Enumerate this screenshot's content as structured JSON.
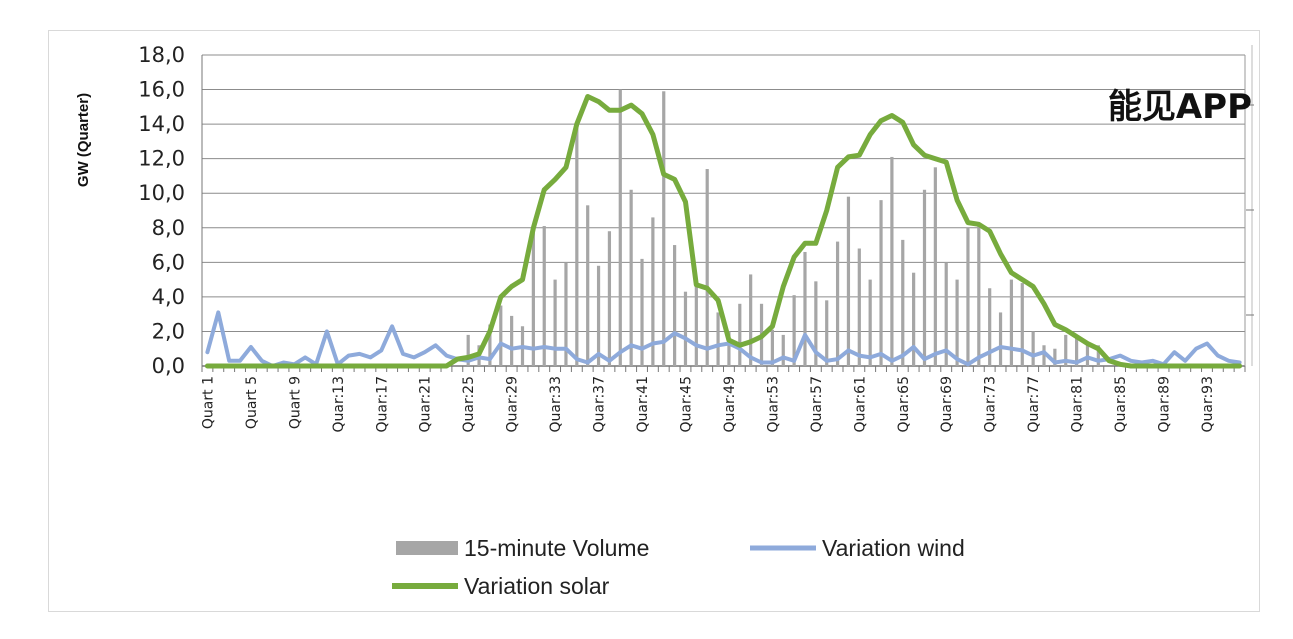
{
  "chart_data": {
    "type": "bar+line",
    "ylabel": "GW (Quarter)",
    "ylim": [
      0,
      18
    ],
    "yticks": [
      "0,0",
      "2,0",
      "4,0",
      "6,0",
      "8,0",
      "10,0",
      "12,0",
      "14,0",
      "16,0",
      "18,0"
    ],
    "grid": "horizontal",
    "legend_position": "bottom",
    "x_tick_labels": [
      "Quart 1",
      "Quart 5",
      "Quart 9",
      "Quar:13",
      "Quar:17",
      "Quar:21",
      "Quar:25",
      "Quar:29",
      "Quar:33",
      "Quar:37",
      "Quar:41",
      "Quar:45",
      "Quar:49",
      "Quar:53",
      "Quar:57",
      "Quar:61",
      "Quar:65",
      "Quar:69",
      "Quar:73",
      "Quar:77",
      "Quar:81",
      "Quar:85",
      "Quar:89",
      "Quar:93"
    ],
    "series": [
      {
        "name": "15-minute Volume",
        "kind": "bar",
        "color": "#a6a6a6",
        "values": [
          0,
          0,
          0,
          0,
          0,
          0,
          0,
          0,
          0,
          0,
          0,
          0,
          0,
          0,
          0,
          0,
          0,
          0,
          0,
          0,
          0,
          0,
          0,
          0,
          1.8,
          1.2,
          2.4,
          3.5,
          2.9,
          2.3,
          7.8,
          8.1,
          5.0,
          6.0,
          14.1,
          9.3,
          5.8,
          7.8,
          16.0,
          10.2,
          6.2,
          8.6,
          15.9,
          7.0,
          4.3,
          5.0,
          11.4,
          3.1,
          2.0,
          3.6,
          5.3,
          3.6,
          2.1,
          1.8,
          4.1,
          6.6,
          4.9,
          3.8,
          7.2,
          9.8,
          6.8,
          5.0,
          9.6,
          12.1,
          7.3,
          5.4,
          10.2,
          11.5,
          6.0,
          5.0,
          8.0,
          8.1,
          4.5,
          3.1,
          5.0,
          4.8,
          2.0,
          1.2,
          1.0,
          1.8,
          1.6,
          1.4,
          1.2,
          0,
          0,
          0,
          0,
          0,
          0,
          0,
          0,
          0,
          0,
          0,
          0,
          0
        ]
      },
      {
        "name": "Variation wind",
        "kind": "line",
        "color": "#8eaadb",
        "values": [
          0.8,
          3.1,
          0.3,
          0.3,
          1.1,
          0.3,
          0,
          0.2,
          0.1,
          0.5,
          0.1,
          2.0,
          0.1,
          0.6,
          0.7,
          0.5,
          0.9,
          2.3,
          0.7,
          0.5,
          0.8,
          1.2,
          0.6,
          0.4,
          0.3,
          0.5,
          0.4,
          1.3,
          1.0,
          1.1,
          1.0,
          1.1,
          1.0,
          1.0,
          0.4,
          0.2,
          0.7,
          0.3,
          0.8,
          1.2,
          1.0,
          1.3,
          1.4,
          1.9,
          1.6,
          1.2,
          1.0,
          1.2,
          1.3,
          1.0,
          0.5,
          0.2,
          0.2,
          0.5,
          0.3,
          1.8,
          0.8,
          0.3,
          0.4,
          0.9,
          0.6,
          0.5,
          0.7,
          0.3,
          0.6,
          1.1,
          0.4,
          0.7,
          0.9,
          0.4,
          0.1,
          0.5,
          0.8,
          1.1,
          1.0,
          0.9,
          0.6,
          0.8,
          0.2,
          0.3,
          0.2,
          0.5,
          0.3,
          0.4,
          0.6,
          0.3,
          0.2,
          0.3,
          0.1,
          0.8,
          0.3,
          1.0,
          1.3,
          0.6,
          0.3,
          0.2
        ]
      },
      {
        "name": "Variation solar",
        "kind": "line",
        "color": "#77ab3d",
        "values": [
          0,
          0,
          0,
          0,
          0,
          0,
          0,
          0,
          0,
          0,
          0,
          0,
          0,
          0,
          0,
          0,
          0,
          0,
          0,
          0,
          0,
          0,
          0,
          0.4,
          0.5,
          0.7,
          2.0,
          4.0,
          4.6,
          5.0,
          8.0,
          10.2,
          10.8,
          11.5,
          14.0,
          15.6,
          15.3,
          14.8,
          14.8,
          15.1,
          14.6,
          13.4,
          11.1,
          10.8,
          9.5,
          4.7,
          4.5,
          3.8,
          1.5,
          1.2,
          1.4,
          1.7,
          2.3,
          4.6,
          6.3,
          7.1,
          7.1,
          9.0,
          11.5,
          12.1,
          12.2,
          13.4,
          14.2,
          14.5,
          14.1,
          12.8,
          12.2,
          12.0,
          11.8,
          9.6,
          8.3,
          8.2,
          7.8,
          6.5,
          5.4,
          5.0,
          4.6,
          3.6,
          2.4,
          2.1,
          1.7,
          1.3,
          1.0,
          0.3,
          0.1,
          0,
          0,
          0,
          0,
          0,
          0,
          0,
          0,
          0,
          0,
          0
        ]
      }
    ],
    "legend": [
      "15-minute Volume",
      "Variation wind",
      "Variation solar"
    ]
  },
  "watermark": "能见APP"
}
